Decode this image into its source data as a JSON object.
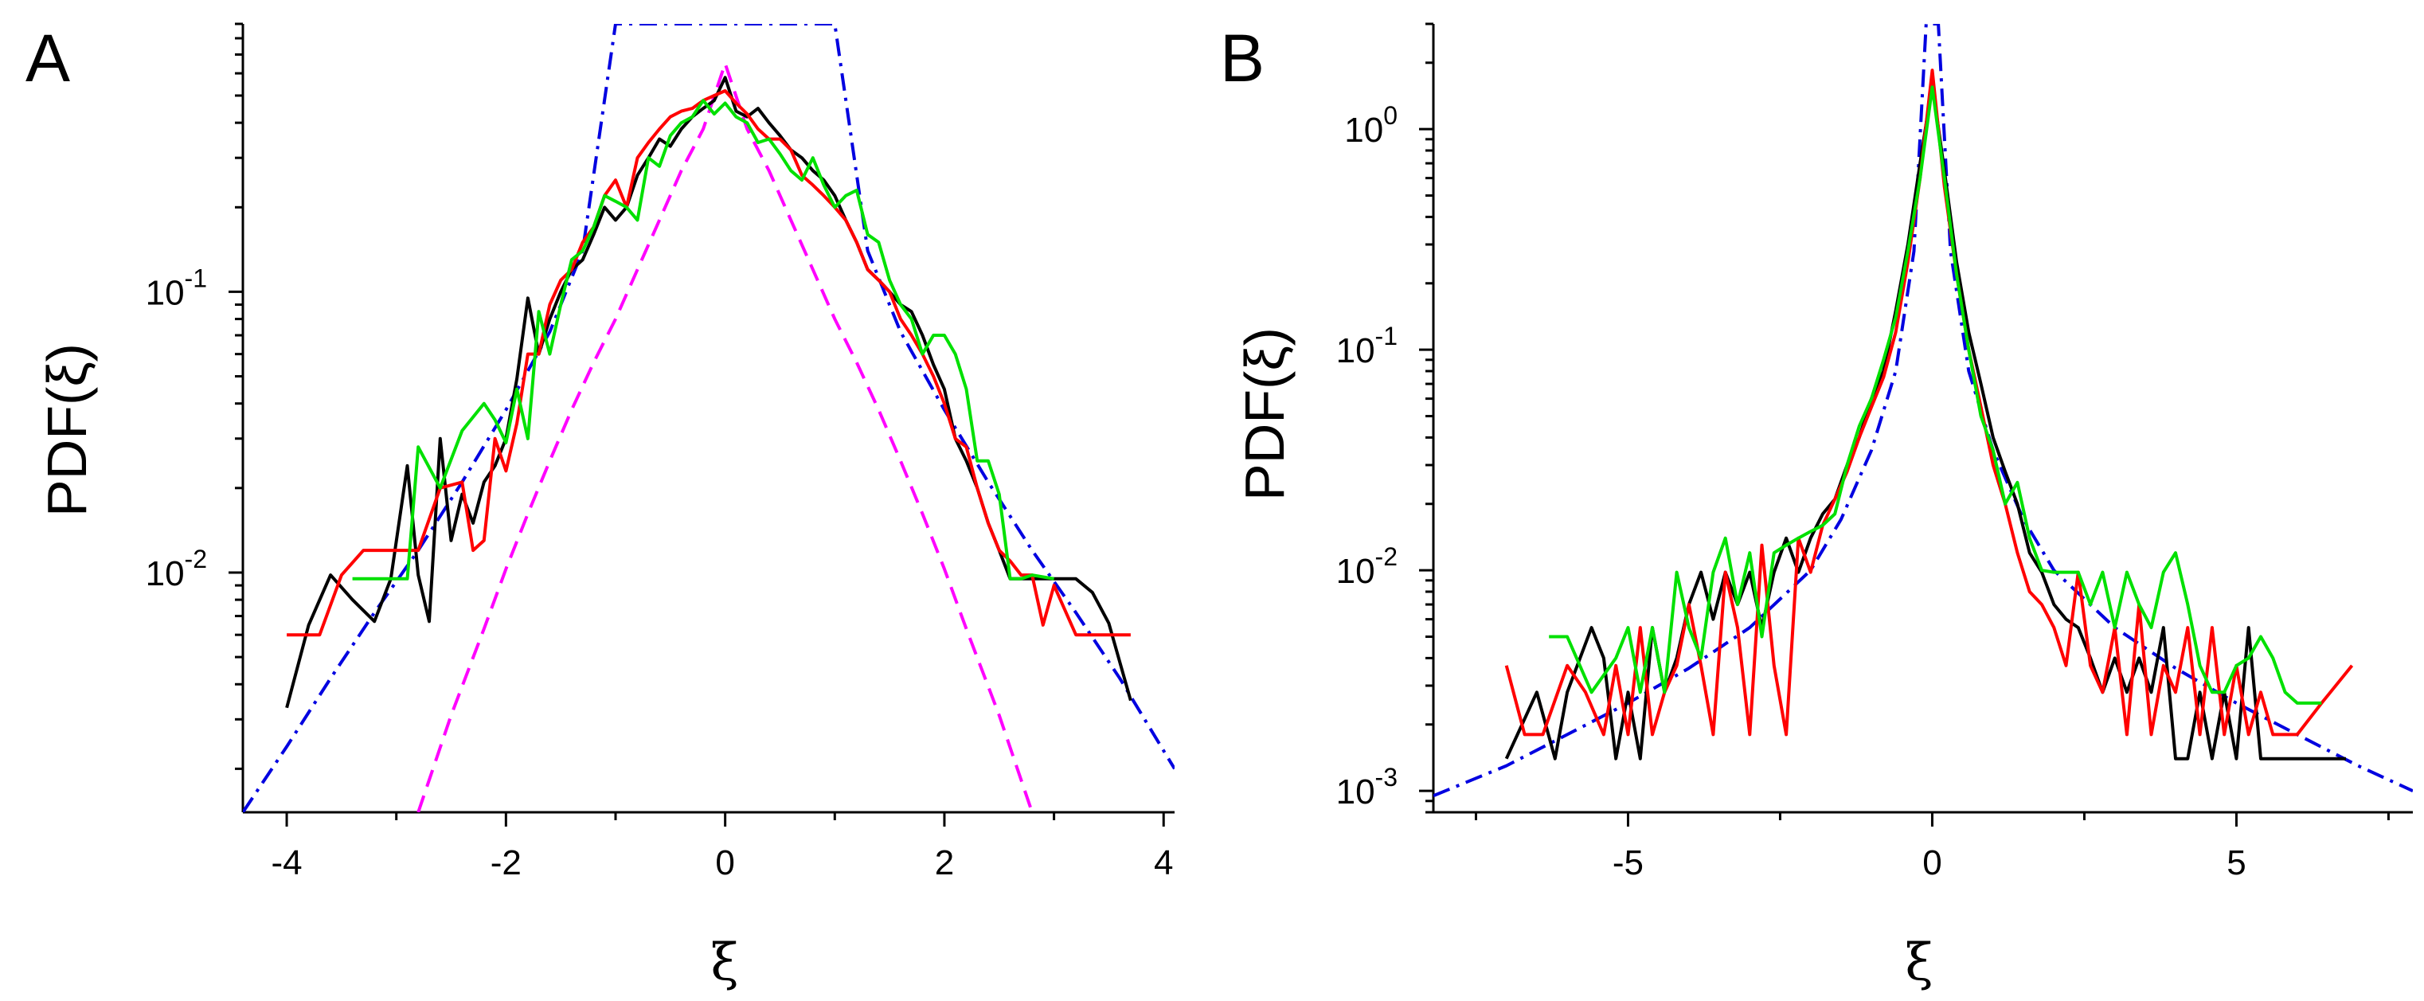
{
  "figure": {
    "panels": [
      "A",
      "B"
    ]
  },
  "chart_data": [
    {
      "panel": "A",
      "type": "line",
      "title": "",
      "xlabel": "ξ",
      "ylabel": "PDF(ξ)",
      "xscale": "linear",
      "yscale": "log",
      "xlim": [
        -4.4,
        4.1
      ],
      "ylim": [
        0.0014,
        0.9
      ],
      "xticks": [
        -4,
        -2,
        0,
        2,
        4
      ],
      "xtick_labels": [
        "-4",
        "-2",
        "0",
        "2",
        "4"
      ],
      "yticks": [
        0.01,
        0.1
      ],
      "ytick_labels": [
        {
          "base": "10",
          "exp": "-2"
        },
        {
          "base": "10",
          "exp": "-1"
        }
      ],
      "grid": false,
      "series": [
        {
          "name": "data (black)",
          "color": "#000000",
          "style": "solid",
          "x": [
            -4.0,
            -3.8,
            -3.6,
            -3.4,
            -3.2,
            -3.05,
            -2.9,
            -2.8,
            -2.7,
            -2.6,
            -2.5,
            -2.4,
            -2.3,
            -2.2,
            -2.1,
            -2.0,
            -1.9,
            -1.8,
            -1.7,
            -1.6,
            -1.5,
            -1.4,
            -1.3,
            -1.2,
            -1.1,
            -1.0,
            -0.9,
            -0.8,
            -0.7,
            -0.6,
            -0.5,
            -0.4,
            -0.3,
            -0.2,
            -0.1,
            0.0,
            0.1,
            0.2,
            0.3,
            0.4,
            0.5,
            0.6,
            0.7,
            0.8,
            0.9,
            1.0,
            1.1,
            1.2,
            1.3,
            1.4,
            1.5,
            1.6,
            1.7,
            1.8,
            1.9,
            2.0,
            2.1,
            2.2,
            2.3,
            2.4,
            2.5,
            2.6,
            2.7,
            2.8,
            2.9,
            3.0,
            3.1,
            3.2,
            3.35,
            3.5,
            3.7
          ],
          "y": [
            0.0033,
            0.0065,
            0.0098,
            0.008,
            0.0067,
            0.0095,
            0.024,
            0.0098,
            0.0067,
            0.03,
            0.013,
            0.019,
            0.015,
            0.021,
            0.024,
            0.03,
            0.049,
            0.095,
            0.06,
            0.08,
            0.1,
            0.12,
            0.13,
            0.16,
            0.2,
            0.18,
            0.2,
            0.26,
            0.3,
            0.35,
            0.33,
            0.38,
            0.42,
            0.45,
            0.48,
            0.58,
            0.44,
            0.42,
            0.45,
            0.4,
            0.36,
            0.32,
            0.3,
            0.27,
            0.25,
            0.22,
            0.18,
            0.15,
            0.12,
            0.11,
            0.1,
            0.09,
            0.085,
            0.07,
            0.055,
            0.045,
            0.03,
            0.025,
            0.02,
            0.015,
            0.012,
            0.0095,
            0.0095,
            0.0095,
            0.0095,
            0.0095,
            0.0095,
            0.0095,
            0.0085,
            0.0066,
            0.0035
          ]
        },
        {
          "name": "data (red)",
          "color": "#ff0000",
          "style": "solid",
          "x": [
            -4.0,
            -3.7,
            -3.5,
            -3.3,
            -3.0,
            -2.8,
            -2.6,
            -2.4,
            -2.3,
            -2.2,
            -2.1,
            -2.0,
            -1.9,
            -1.8,
            -1.7,
            -1.6,
            -1.5,
            -1.4,
            -1.3,
            -1.2,
            -1.1,
            -1.0,
            -0.9,
            -0.8,
            -0.7,
            -0.6,
            -0.5,
            -0.4,
            -0.3,
            -0.2,
            -0.1,
            0.0,
            0.1,
            0.2,
            0.3,
            0.4,
            0.5,
            0.6,
            0.7,
            0.8,
            0.9,
            1.0,
            1.1,
            1.2,
            1.3,
            1.4,
            1.5,
            1.6,
            1.7,
            1.8,
            1.9,
            2.0,
            2.1,
            2.2,
            2.3,
            2.4,
            2.5,
            2.6,
            2.7,
            2.8,
            2.9,
            3.0,
            3.2,
            3.5,
            3.7
          ],
          "y": [
            0.006,
            0.006,
            0.0098,
            0.012,
            0.012,
            0.012,
            0.02,
            0.021,
            0.012,
            0.013,
            0.03,
            0.023,
            0.034,
            0.06,
            0.06,
            0.09,
            0.11,
            0.12,
            0.15,
            0.17,
            0.22,
            0.25,
            0.2,
            0.3,
            0.34,
            0.38,
            0.42,
            0.44,
            0.45,
            0.48,
            0.5,
            0.52,
            0.47,
            0.43,
            0.38,
            0.35,
            0.35,
            0.32,
            0.26,
            0.24,
            0.22,
            0.2,
            0.18,
            0.15,
            0.12,
            0.11,
            0.1,
            0.08,
            0.07,
            0.06,
            0.05,
            0.04,
            0.03,
            0.028,
            0.02,
            0.015,
            0.012,
            0.011,
            0.0098,
            0.0098,
            0.0065,
            0.009,
            0.006,
            0.006,
            0.006
          ]
        },
        {
          "name": "data (green)",
          "color": "#00e000",
          "style": "solid",
          "x": [
            -3.4,
            -3.1,
            -2.9,
            -2.8,
            -2.6,
            -2.4,
            -2.2,
            -2.1,
            -2.0,
            -1.9,
            -1.8,
            -1.7,
            -1.6,
            -1.5,
            -1.4,
            -1.3,
            -1.2,
            -1.1,
            -1.0,
            -0.9,
            -0.8,
            -0.7,
            -0.6,
            -0.5,
            -0.4,
            -0.3,
            -0.2,
            -0.1,
            0.0,
            0.1,
            0.2,
            0.3,
            0.4,
            0.5,
            0.6,
            0.7,
            0.8,
            0.9,
            1.0,
            1.1,
            1.2,
            1.3,
            1.4,
            1.5,
            1.6,
            1.7,
            1.8,
            1.9,
            2.0,
            2.1,
            2.2,
            2.3,
            2.4,
            2.5,
            2.6,
            2.7,
            2.8,
            3.0
          ],
          "y": [
            0.0095,
            0.0095,
            0.0095,
            0.028,
            0.02,
            0.032,
            0.04,
            0.035,
            0.029,
            0.045,
            0.03,
            0.085,
            0.06,
            0.09,
            0.13,
            0.14,
            0.17,
            0.22,
            0.21,
            0.2,
            0.18,
            0.3,
            0.28,
            0.36,
            0.4,
            0.42,
            0.48,
            0.43,
            0.47,
            0.42,
            0.4,
            0.34,
            0.35,
            0.31,
            0.27,
            0.25,
            0.3,
            0.24,
            0.2,
            0.22,
            0.23,
            0.16,
            0.15,
            0.11,
            0.09,
            0.08,
            0.06,
            0.07,
            0.07,
            0.06,
            0.045,
            0.025,
            0.025,
            0.019,
            0.0095,
            0.0095,
            0.0098,
            0.0095
          ]
        },
        {
          "name": "fit (dash-dot)",
          "color": "#0000e0",
          "style": "dashdot",
          "x": [
            -4.4,
            -4.0,
            -3.6,
            -3.2,
            -2.8,
            -2.4,
            -2.0,
            -1.6,
            -1.3,
            -1.0,
            1.0,
            1.3,
            1.6,
            2.0,
            2.4,
            2.8,
            3.2,
            3.6,
            4.1
          ],
          "y": [
            0.0014,
            0.0024,
            0.0042,
            0.0072,
            0.012,
            0.021,
            0.038,
            0.072,
            0.14,
            0.9,
            0.9,
            0.14,
            0.072,
            0.038,
            0.021,
            0.012,
            0.0072,
            0.0042,
            0.002
          ]
        },
        {
          "name": "fit (dashed)",
          "color": "#ff00ff",
          "style": "dashed",
          "x": [
            -2.8,
            -2.5,
            -2.2,
            -2.0,
            -1.8,
            -1.6,
            -1.4,
            -1.2,
            -1.0,
            -0.8,
            -0.6,
            -0.4,
            -0.2,
            0.0,
            0.2,
            0.4,
            0.6,
            0.8,
            1.0,
            1.2,
            1.4,
            1.6,
            1.8,
            2.0,
            2.2,
            2.5,
            2.8
          ],
          "y": [
            0.0014,
            0.0031,
            0.0063,
            0.0103,
            0.0162,
            0.025,
            0.038,
            0.056,
            0.08,
            0.12,
            0.18,
            0.27,
            0.38,
            0.65,
            0.38,
            0.27,
            0.18,
            0.12,
            0.08,
            0.056,
            0.038,
            0.025,
            0.0162,
            0.0103,
            0.0063,
            0.0031,
            0.0014
          ]
        }
      ]
    },
    {
      "panel": "B",
      "type": "line",
      "title": "",
      "xlabel": "ξ",
      "ylabel": "PDF(ξ)",
      "xscale": "linear",
      "yscale": "log",
      "xlim": [
        -8.2,
        7.9
      ],
      "ylim": [
        0.0008,
        3.0
      ],
      "xticks": [
        -5,
        0,
        5
      ],
      "xtick_labels": [
        "-5",
        "0",
        "5"
      ],
      "yticks": [
        0.001,
        0.01,
        0.1,
        1
      ],
      "ytick_labels": [
        {
          "base": "10",
          "exp": "-3"
        },
        {
          "base": "10",
          "exp": "-2"
        },
        {
          "base": "10",
          "exp": "-1"
        },
        {
          "base": "10",
          "exp": "0"
        }
      ],
      "grid": false,
      "series": [
        {
          "name": "data (black)",
          "color": "#000000",
          "style": "solid",
          "x": [
            -7.0,
            -6.5,
            -6.2,
            -6.0,
            -5.6,
            -5.4,
            -5.2,
            -5.0,
            -4.8,
            -4.6,
            -4.4,
            -4.2,
            -4.0,
            -3.8,
            -3.6,
            -3.4,
            -3.2,
            -3.0,
            -2.8,
            -2.6,
            -2.4,
            -2.2,
            -2.0,
            -1.8,
            -1.6,
            -1.4,
            -1.2,
            -1.0,
            -0.8,
            -0.6,
            -0.4,
            -0.2,
            0.0,
            0.2,
            0.4,
            0.6,
            0.8,
            1.0,
            1.2,
            1.4,
            1.6,
            1.8,
            2.0,
            2.2,
            2.4,
            2.6,
            2.8,
            3.0,
            3.2,
            3.4,
            3.6,
            3.8,
            4.0,
            4.2,
            4.4,
            4.6,
            4.8,
            5.0,
            5.2,
            5.4,
            5.6,
            5.8,
            6.0,
            6.4,
            6.8
          ],
          "y": [
            0.0014,
            0.0028,
            0.0014,
            0.0028,
            0.0055,
            0.004,
            0.0014,
            0.0028,
            0.0014,
            0.0055,
            0.0028,
            0.004,
            0.007,
            0.0098,
            0.006,
            0.0098,
            0.007,
            0.0098,
            0.0055,
            0.0098,
            0.014,
            0.0098,
            0.014,
            0.018,
            0.021,
            0.03,
            0.04,
            0.06,
            0.08,
            0.15,
            0.3,
            0.7,
            1.6,
            0.65,
            0.25,
            0.12,
            0.07,
            0.04,
            0.028,
            0.02,
            0.012,
            0.0098,
            0.007,
            0.006,
            0.0055,
            0.004,
            0.0028,
            0.004,
            0.0028,
            0.004,
            0.0028,
            0.0055,
            0.0014,
            0.0014,
            0.0028,
            0.0014,
            0.0028,
            0.0014,
            0.0055,
            0.0014,
            0.0014,
            0.0014,
            0.0014,
            0.0014,
            0.0014
          ]
        },
        {
          "name": "data (red)",
          "color": "#ff0000",
          "style": "solid",
          "x": [
            -7.0,
            -6.7,
            -6.4,
            -6.0,
            -5.7,
            -5.4,
            -5.2,
            -5.0,
            -4.8,
            -4.6,
            -4.4,
            -4.2,
            -4.0,
            -3.8,
            -3.6,
            -3.4,
            -3.2,
            -3.0,
            -2.8,
            -2.6,
            -2.4,
            -2.2,
            -2.0,
            -1.8,
            -1.6,
            -1.4,
            -1.2,
            -1.0,
            -0.8,
            -0.6,
            -0.4,
            -0.2,
            0.0,
            0.2,
            0.4,
            0.6,
            0.8,
            1.0,
            1.2,
            1.4,
            1.6,
            1.8,
            2.0,
            2.2,
            2.4,
            2.6,
            2.8,
            3.0,
            3.2,
            3.4,
            3.6,
            3.8,
            4.0,
            4.2,
            4.4,
            4.6,
            4.8,
            5.0,
            5.2,
            5.4,
            5.6,
            5.8,
            6.0,
            6.4,
            6.9
          ],
          "y": [
            0.0037,
            0.0018,
            0.0018,
            0.0037,
            0.0028,
            0.0018,
            0.0037,
            0.0018,
            0.0055,
            0.0018,
            0.0028,
            0.0037,
            0.007,
            0.0037,
            0.0018,
            0.0098,
            0.0055,
            0.0018,
            0.013,
            0.0037,
            0.0018,
            0.014,
            0.0098,
            0.016,
            0.021,
            0.028,
            0.04,
            0.055,
            0.075,
            0.12,
            0.25,
            0.6,
            1.85,
            0.55,
            0.22,
            0.1,
            0.055,
            0.03,
            0.02,
            0.012,
            0.008,
            0.007,
            0.0055,
            0.0037,
            0.0098,
            0.0037,
            0.0028,
            0.0055,
            0.0018,
            0.007,
            0.0018,
            0.0037,
            0.0028,
            0.0055,
            0.0018,
            0.0055,
            0.0018,
            0.0037,
            0.0018,
            0.0028,
            0.0018,
            0.0018,
            0.0018,
            0.0025,
            0.0037
          ]
        },
        {
          "name": "data (green)",
          "color": "#00e000",
          "style": "solid",
          "x": [
            -6.3,
            -6.0,
            -5.6,
            -5.2,
            -5.0,
            -4.8,
            -4.6,
            -4.4,
            -4.2,
            -4.0,
            -3.8,
            -3.6,
            -3.4,
            -3.2,
            -3.0,
            -2.8,
            -2.6,
            -2.4,
            -2.2,
            -2.0,
            -1.8,
            -1.6,
            -1.4,
            -1.2,
            -1.0,
            -0.8,
            -0.6,
            -0.4,
            -0.2,
            0.0,
            0.2,
            0.4,
            0.6,
            0.8,
            1.0,
            1.2,
            1.4,
            1.6,
            1.8,
            2.0,
            2.2,
            2.4,
            2.6,
            2.8,
            3.0,
            3.2,
            3.4,
            3.6,
            3.8,
            4.0,
            4.2,
            4.4,
            4.6,
            4.8,
            5.0,
            5.2,
            5.4,
            5.6,
            5.8,
            6.0,
            6.4
          ],
          "y": [
            0.005,
            0.005,
            0.0028,
            0.004,
            0.0055,
            0.0028,
            0.0055,
            0.0028,
            0.0098,
            0.0055,
            0.004,
            0.0098,
            0.014,
            0.007,
            0.012,
            0.005,
            0.012,
            0.013,
            0.014,
            0.015,
            0.016,
            0.018,
            0.03,
            0.045,
            0.06,
            0.09,
            0.14,
            0.28,
            0.6,
            1.55,
            0.6,
            0.22,
            0.1,
            0.05,
            0.035,
            0.02,
            0.025,
            0.014,
            0.01,
            0.0098,
            0.0098,
            0.0098,
            0.007,
            0.0098,
            0.0055,
            0.0098,
            0.007,
            0.0055,
            0.0098,
            0.012,
            0.007,
            0.0037,
            0.0028,
            0.0028,
            0.0037,
            0.004,
            0.005,
            0.004,
            0.0028,
            0.0025,
            0.0025
          ]
        },
        {
          "name": "fit (dash-dot)",
          "color": "#0000e0",
          "style": "dashdot",
          "x": [
            -8.2,
            -7.0,
            -6.0,
            -5.0,
            -4.0,
            -3.0,
            -2.0,
            -1.5,
            -1.0,
            -0.6,
            -0.3,
            -0.1,
            0.1,
            0.3,
            0.6,
            1.0,
            1.5,
            2.0,
            3.0,
            4.0,
            5.0,
            6.0,
            7.0,
            7.9
          ],
          "y": [
            0.00095,
            0.0013,
            0.0018,
            0.0025,
            0.0036,
            0.0055,
            0.01,
            0.017,
            0.035,
            0.08,
            0.28,
            3.0,
            3.0,
            0.28,
            0.08,
            0.035,
            0.017,
            0.01,
            0.0055,
            0.0036,
            0.0025,
            0.0018,
            0.0013,
            0.001
          ]
        }
      ]
    }
  ]
}
